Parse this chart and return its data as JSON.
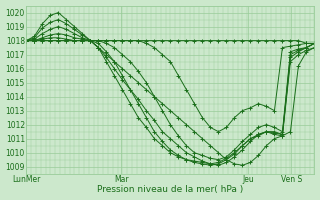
{
  "title": "",
  "xlabel": "Pression niveau de la mer( hPa )",
  "bg_color": "#cce8cc",
  "grid_color": "#99cc99",
  "line_color": "#1a6e1a",
  "ylim": [
    1008.5,
    1020.5
  ],
  "yticks": [
    1009,
    1010,
    1011,
    1012,
    1013,
    1014,
    1015,
    1016,
    1017,
    1018,
    1019,
    1020
  ],
  "xtick_labels": [
    "LunMer",
    "Mar",
    "Jeu",
    "Ven S"
  ],
  "xtick_pos": [
    0.0,
    0.33,
    0.77,
    0.92
  ],
  "series": [
    [
      1018.0,
      1018.3,
      1019.2,
      1019.8,
      1020.0,
      1019.5,
      1019.0,
      1018.5,
      1018.0,
      1017.5,
      1017.0,
      1016.5,
      1016.0,
      1015.5,
      1015.0,
      1014.5,
      1014.0,
      1013.5,
      1013.0,
      1012.5,
      1012.0,
      1011.5,
      1011.0,
      1010.5,
      1010.0,
      1009.5,
      1009.2,
      1009.1,
      1009.3,
      1009.8,
      1010.5,
      1011.0,
      1011.2,
      1011.5,
      1016.2,
      1017.2,
      1017.5
    ],
    [
      1018.0,
      1018.2,
      1018.9,
      1019.3,
      1019.5,
      1019.2,
      1018.8,
      1018.4,
      1018.0,
      1017.5,
      1016.8,
      1016.0,
      1015.2,
      1014.5,
      1013.8,
      1013.0,
      1012.3,
      1011.5,
      1011.0,
      1010.5,
      1010.0,
      1009.7,
      1009.4,
      1009.2,
      1009.1,
      1009.3,
      1009.7,
      1010.2,
      1010.8,
      1011.3,
      1011.5,
      1011.3,
      1011.2,
      1016.5,
      1017.0,
      1017.3,
      1017.5
    ],
    [
      1018.0,
      1018.1,
      1018.5,
      1018.8,
      1019.0,
      1018.8,
      1018.5,
      1018.2,
      1018.0,
      1017.5,
      1016.5,
      1015.5,
      1014.5,
      1013.5,
      1012.5,
      1011.8,
      1011.0,
      1010.5,
      1010.0,
      1009.7,
      1009.5,
      1009.3,
      1009.2,
      1009.1,
      1009.2,
      1009.5,
      1009.9,
      1010.5,
      1011.0,
      1011.3,
      1011.5,
      1011.4,
      1011.3,
      1016.8,
      1017.2,
      1017.5,
      1017.8
    ],
    [
      1018.0,
      1018.0,
      1018.2,
      1018.4,
      1018.5,
      1018.4,
      1018.2,
      1018.1,
      1018.0,
      1017.8,
      1017.2,
      1016.5,
      1015.5,
      1014.5,
      1013.5,
      1012.5,
      1011.5,
      1010.8,
      1010.2,
      1009.8,
      1009.5,
      1009.4,
      1009.3,
      1009.2,
      1009.3,
      1009.6,
      1010.0,
      1010.5,
      1011.0,
      1011.2,
      1011.5,
      1011.5,
      1011.3,
      1017.0,
      1017.3,
      1017.5,
      1017.8
    ],
    [
      1018.0,
      1018.0,
      1018.1,
      1018.2,
      1018.2,
      1018.1,
      1018.0,
      1018.0,
      1018.0,
      1018.0,
      1017.8,
      1017.5,
      1017.0,
      1016.5,
      1015.8,
      1015.0,
      1014.0,
      1013.0,
      1012.0,
      1011.2,
      1010.5,
      1010.0,
      1009.8,
      1009.6,
      1009.5,
      1009.7,
      1010.2,
      1010.8,
      1011.3,
      1011.8,
      1012.0,
      1011.8,
      1011.5,
      1017.2,
      1017.4,
      1017.5,
      1017.8
    ],
    [
      1018.0,
      1018.0,
      1018.0,
      1018.0,
      1018.0,
      1018.0,
      1018.0,
      1018.0,
      1018.0,
      1018.0,
      1018.0,
      1018.0,
      1018.0,
      1018.0,
      1018.0,
      1017.8,
      1017.5,
      1017.0,
      1016.5,
      1015.5,
      1014.5,
      1013.5,
      1012.5,
      1011.8,
      1011.5,
      1011.8,
      1012.5,
      1013.0,
      1013.2,
      1013.5,
      1013.3,
      1013.0,
      1017.5,
      1017.6,
      1017.7,
      1017.8,
      1017.8
    ],
    [
      1018.0,
      1018.0,
      1018.0,
      1018.0,
      1018.0,
      1018.0,
      1018.0,
      1018.0,
      1018.0,
      1018.0,
      1018.0,
      1018.0,
      1018.0,
      1018.0,
      1018.0,
      1018.0,
      1018.0,
      1018.0,
      1018.0,
      1018.0,
      1018.0,
      1018.0,
      1018.0,
      1018.0,
      1018.0,
      1018.0,
      1018.0,
      1018.0,
      1018.0,
      1018.0,
      1018.0,
      1018.0,
      1018.0,
      1018.0,
      1018.0,
      1017.8,
      1017.8
    ]
  ]
}
